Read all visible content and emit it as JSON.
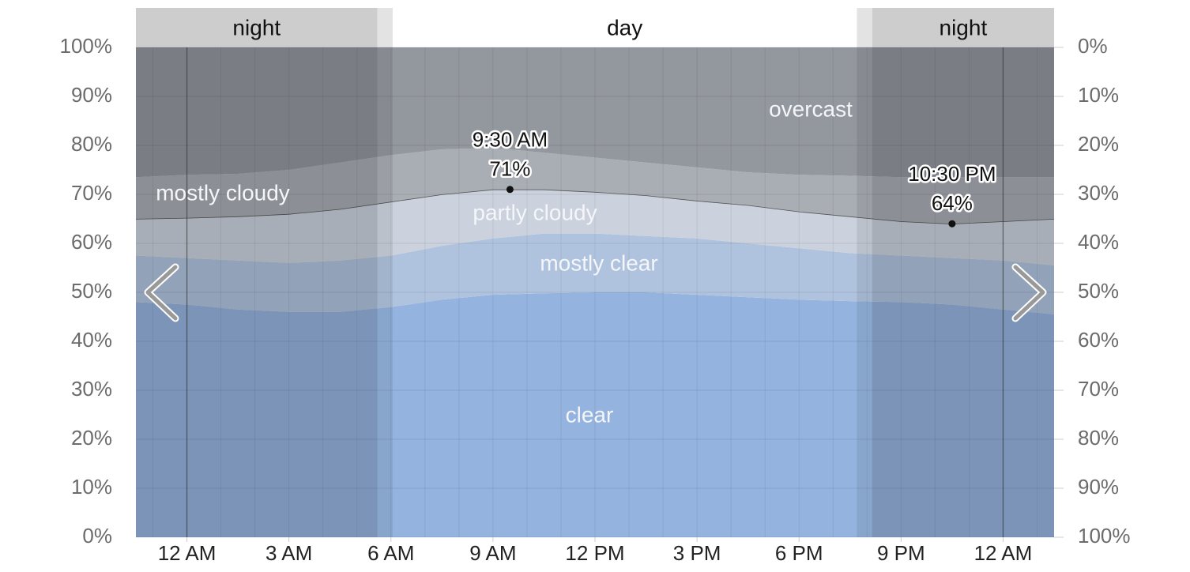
{
  "chart_data": {
    "type": "stacked_area",
    "x": [
      -1.5,
      0,
      1.5,
      3,
      4.5,
      6,
      7.5,
      9,
      10.5,
      12,
      13.5,
      15,
      16.5,
      18,
      19.5,
      21,
      22.5,
      24,
      25.5
    ],
    "xlim": [
      -1.5,
      25.5
    ],
    "xticks": [
      {
        "value": 0,
        "label": "12 AM"
      },
      {
        "value": 3,
        "label": "3 AM"
      },
      {
        "value": 6,
        "label": "6 AM"
      },
      {
        "value": 9,
        "label": "9 AM"
      },
      {
        "value": 12,
        "label": "12 PM"
      },
      {
        "value": 15,
        "label": "3 PM"
      },
      {
        "value": 18,
        "label": "6 PM"
      },
      {
        "value": 21,
        "label": "9 PM"
      },
      {
        "value": 24,
        "label": "12 AM"
      }
    ],
    "x_minor_grid_step": 1,
    "midnights": [
      0,
      24
    ],
    "ylim": [
      0,
      100
    ],
    "yticks": [
      {
        "value": 0,
        "label": "0%"
      },
      {
        "value": 10,
        "label": "10%"
      },
      {
        "value": 20,
        "label": "20%"
      },
      {
        "value": 30,
        "label": "30%"
      },
      {
        "value": 40,
        "label": "40%"
      },
      {
        "value": 50,
        "label": "50%"
      },
      {
        "value": 60,
        "label": "60%"
      },
      {
        "value": 70,
        "label": "70%"
      },
      {
        "value": 80,
        "label": "80%"
      },
      {
        "value": 90,
        "label": "90%"
      },
      {
        "value": 100,
        "label": "100%"
      }
    ],
    "y2lim": [
      100,
      0
    ],
    "y2ticks": [
      {
        "value": 0,
        "label": "0%"
      },
      {
        "value": 10,
        "label": "10%"
      },
      {
        "value": 20,
        "label": "20%"
      },
      {
        "value": 30,
        "label": "30%"
      },
      {
        "value": 40,
        "label": "40%"
      },
      {
        "value": 50,
        "label": "50%"
      },
      {
        "value": 60,
        "label": "60%"
      },
      {
        "value": 70,
        "label": "70%"
      },
      {
        "value": 80,
        "label": "80%"
      },
      {
        "value": 90,
        "label": "90%"
      },
      {
        "value": 100,
        "label": "100%"
      }
    ],
    "grid": true,
    "series": [
      {
        "name": "clear",
        "color": "#94b3de",
        "values": [
          48,
          47.5,
          46.5,
          46,
          46,
          47,
          48.5,
          49.5,
          49.8,
          50,
          50,
          49.5,
          49,
          48.5,
          48.2,
          48,
          47.5,
          46.5,
          45.5
        ]
      },
      {
        "name": "mostly clear",
        "color": "#b0c3de",
        "values": [
          9.5,
          9.5,
          10,
          10,
          10.5,
          10.5,
          11,
          11.5,
          12.2,
          12,
          11.5,
          11.5,
          11,
          10.5,
          9.8,
          9.5,
          9.5,
          10,
          10
        ]
      },
      {
        "name": "partly cloudy",
        "color": "#cbd2dd",
        "outline": true,
        "values": [
          7.5,
          8.2,
          9,
          10,
          10.5,
          11,
          10.5,
          10,
          9,
          8.5,
          8.3,
          7.7,
          7.8,
          7.5,
          7.5,
          7,
          7,
          8,
          9.5
        ]
      },
      {
        "name": "mostly cloudy",
        "color": "#a9adb4",
        "values": [
          8.5,
          8.8,
          8.7,
          9,
          9.5,
          9.5,
          9.2,
          8.5,
          7.5,
          7,
          6.7,
          6.8,
          6.7,
          7.5,
          8.3,
          9,
          9.5,
          9,
          8.5
        ]
      },
      {
        "name": "overcast",
        "color": "#93979e",
        "values": [
          26.5,
          26,
          25.8,
          25,
          23.5,
          22,
          20.8,
          20.5,
          21.5,
          22.5,
          23.5,
          24.5,
          25.5,
          26,
          26.2,
          26.5,
          26.5,
          26.5,
          26.5
        ]
      }
    ],
    "periods": [
      {
        "name": "night",
        "start": -1.5,
        "end": 5.6
      },
      {
        "name": "day",
        "start": 6.05,
        "end": 19.7
      },
      {
        "name": "night",
        "start": 20.15,
        "end": 25.5
      }
    ],
    "twilight": [
      [
        5.6,
        6.05
      ],
      [
        19.7,
        20.15
      ]
    ],
    "annotations": [
      {
        "x": 9.5,
        "x_label": "9:30 AM",
        "value": 71,
        "value_label": "71%"
      },
      {
        "x": 22.5,
        "x_label": "10:30 PM",
        "value": 64,
        "value_label": "64%"
      }
    ]
  }
}
